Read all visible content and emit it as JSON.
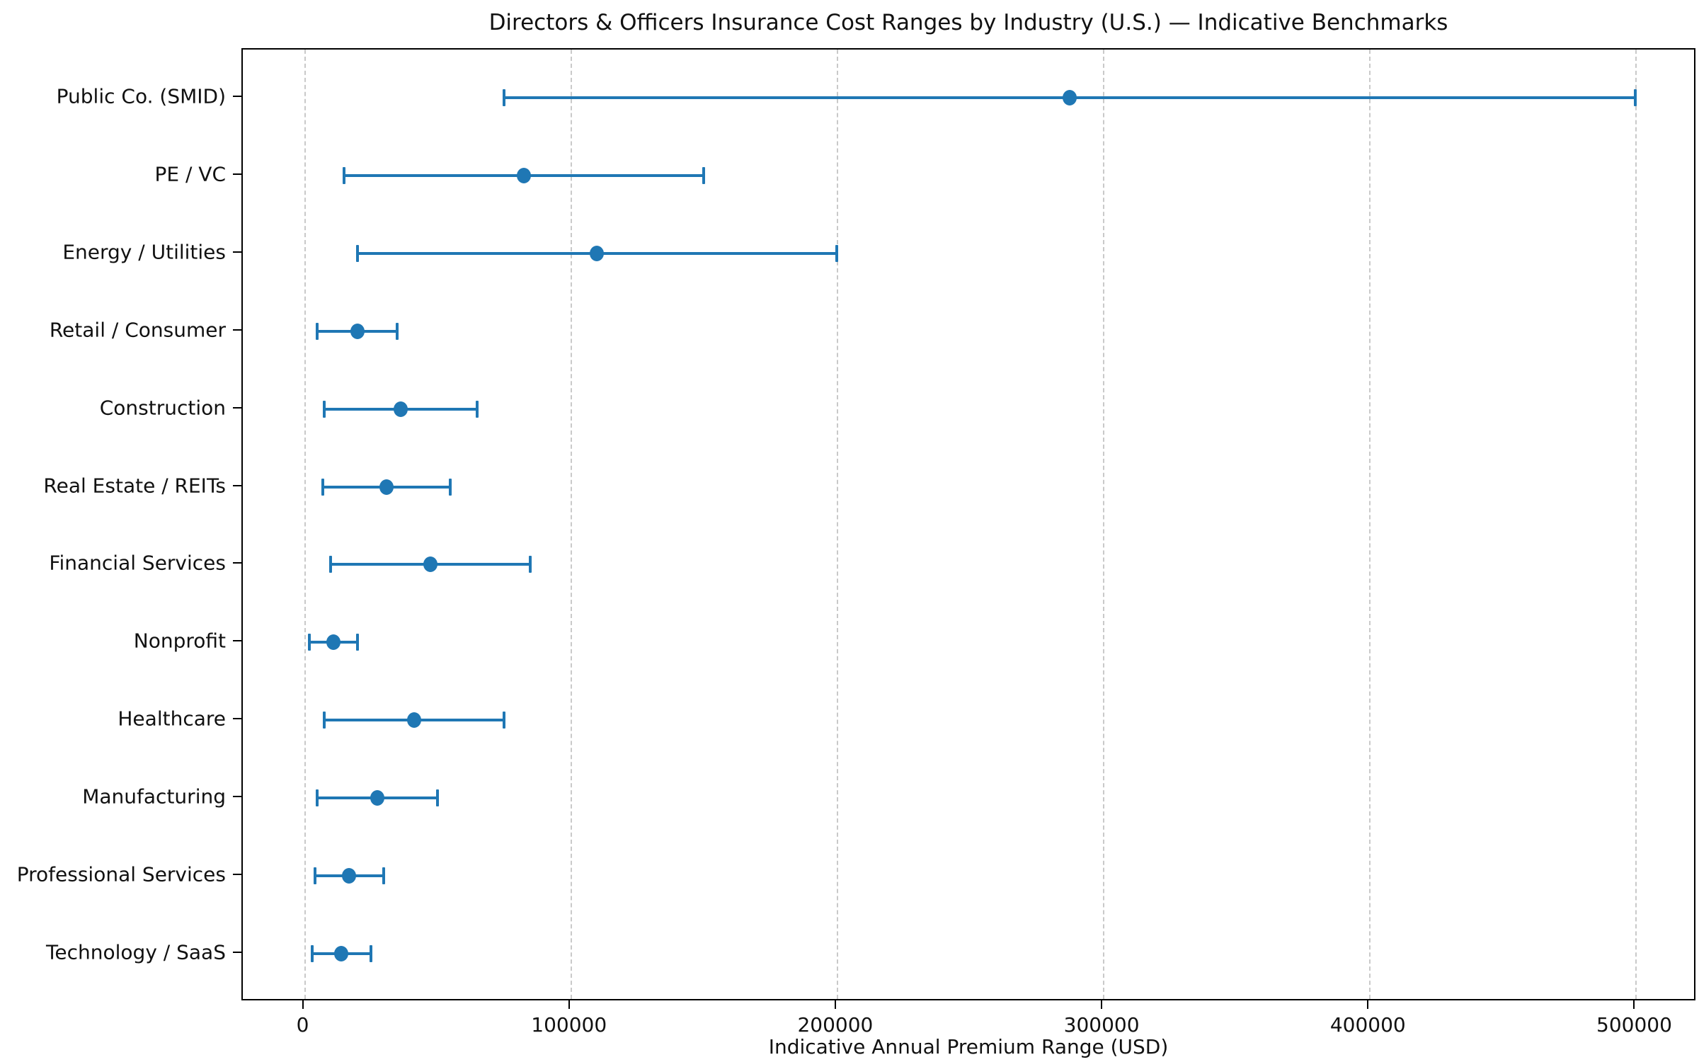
{
  "figure": {
    "title": "Directors & Officers Insurance Cost Ranges by Industry (U.S.) — Indicative Benchmarks",
    "xlabel": "Indicative Annual Premium Range (USD)"
  },
  "chart_data": {
    "type": "scatter",
    "subtype": "horizontal-range-errorbar",
    "title": "Directors & Officers Insurance Cost Ranges by Industry (U.S.) — Indicative Benchmarks",
    "xlabel": "Indicative Annual Premium Range (USD)",
    "ylabel": "",
    "xlim": [
      -23000,
      523000
    ],
    "x_ticks": [
      0,
      100000,
      200000,
      300000,
      400000,
      500000
    ],
    "x_tick_labels": [
      "0",
      "100000",
      "200000",
      "300000",
      "400000",
      "500000"
    ],
    "grid": "vertical-dashed",
    "grid_color": "#c9c9c9",
    "marker_color": "#1f77b4",
    "legend": "none",
    "categories": [
      "Public Co. (SMID)",
      "PE / VC",
      "Energy / Utilities",
      "Retail / Consumer",
      "Construction",
      "Real Estate / REITs",
      "Financial Services",
      "Nonprofit",
      "Healthcare",
      "Manufacturing",
      "Professional Services",
      "Technology / SaaS"
    ],
    "rows": [
      {
        "label": "Public Co. (SMID)",
        "min": 75000,
        "mid": 287500,
        "max": 500000
      },
      {
        "label": "PE / VC",
        "min": 15000,
        "mid": 82500,
        "max": 150000
      },
      {
        "label": "Energy / Utilities",
        "min": 20000,
        "mid": 110000,
        "max": 200000
      },
      {
        "label": "Retail / Consumer",
        "min": 5000,
        "mid": 20000,
        "max": 35000
      },
      {
        "label": "Construction",
        "min": 7500,
        "mid": 36250,
        "max": 65000
      },
      {
        "label": "Real Estate / REITs",
        "min": 7000,
        "mid": 31000,
        "max": 55000
      },
      {
        "label": "Financial Services",
        "min": 10000,
        "mid": 47500,
        "max": 85000
      },
      {
        "label": "Nonprofit",
        "min": 2000,
        "mid": 11000,
        "max": 20000
      },
      {
        "label": "Healthcare",
        "min": 7500,
        "mid": 41250,
        "max": 75000
      },
      {
        "label": "Manufacturing",
        "min": 5000,
        "mid": 27500,
        "max": 50000
      },
      {
        "label": "Professional Services",
        "min": 4000,
        "mid": 17000,
        "max": 30000
      },
      {
        "label": "Technology / SaaS",
        "min": 3000,
        "mid": 14000,
        "max": 25000
      }
    ]
  }
}
